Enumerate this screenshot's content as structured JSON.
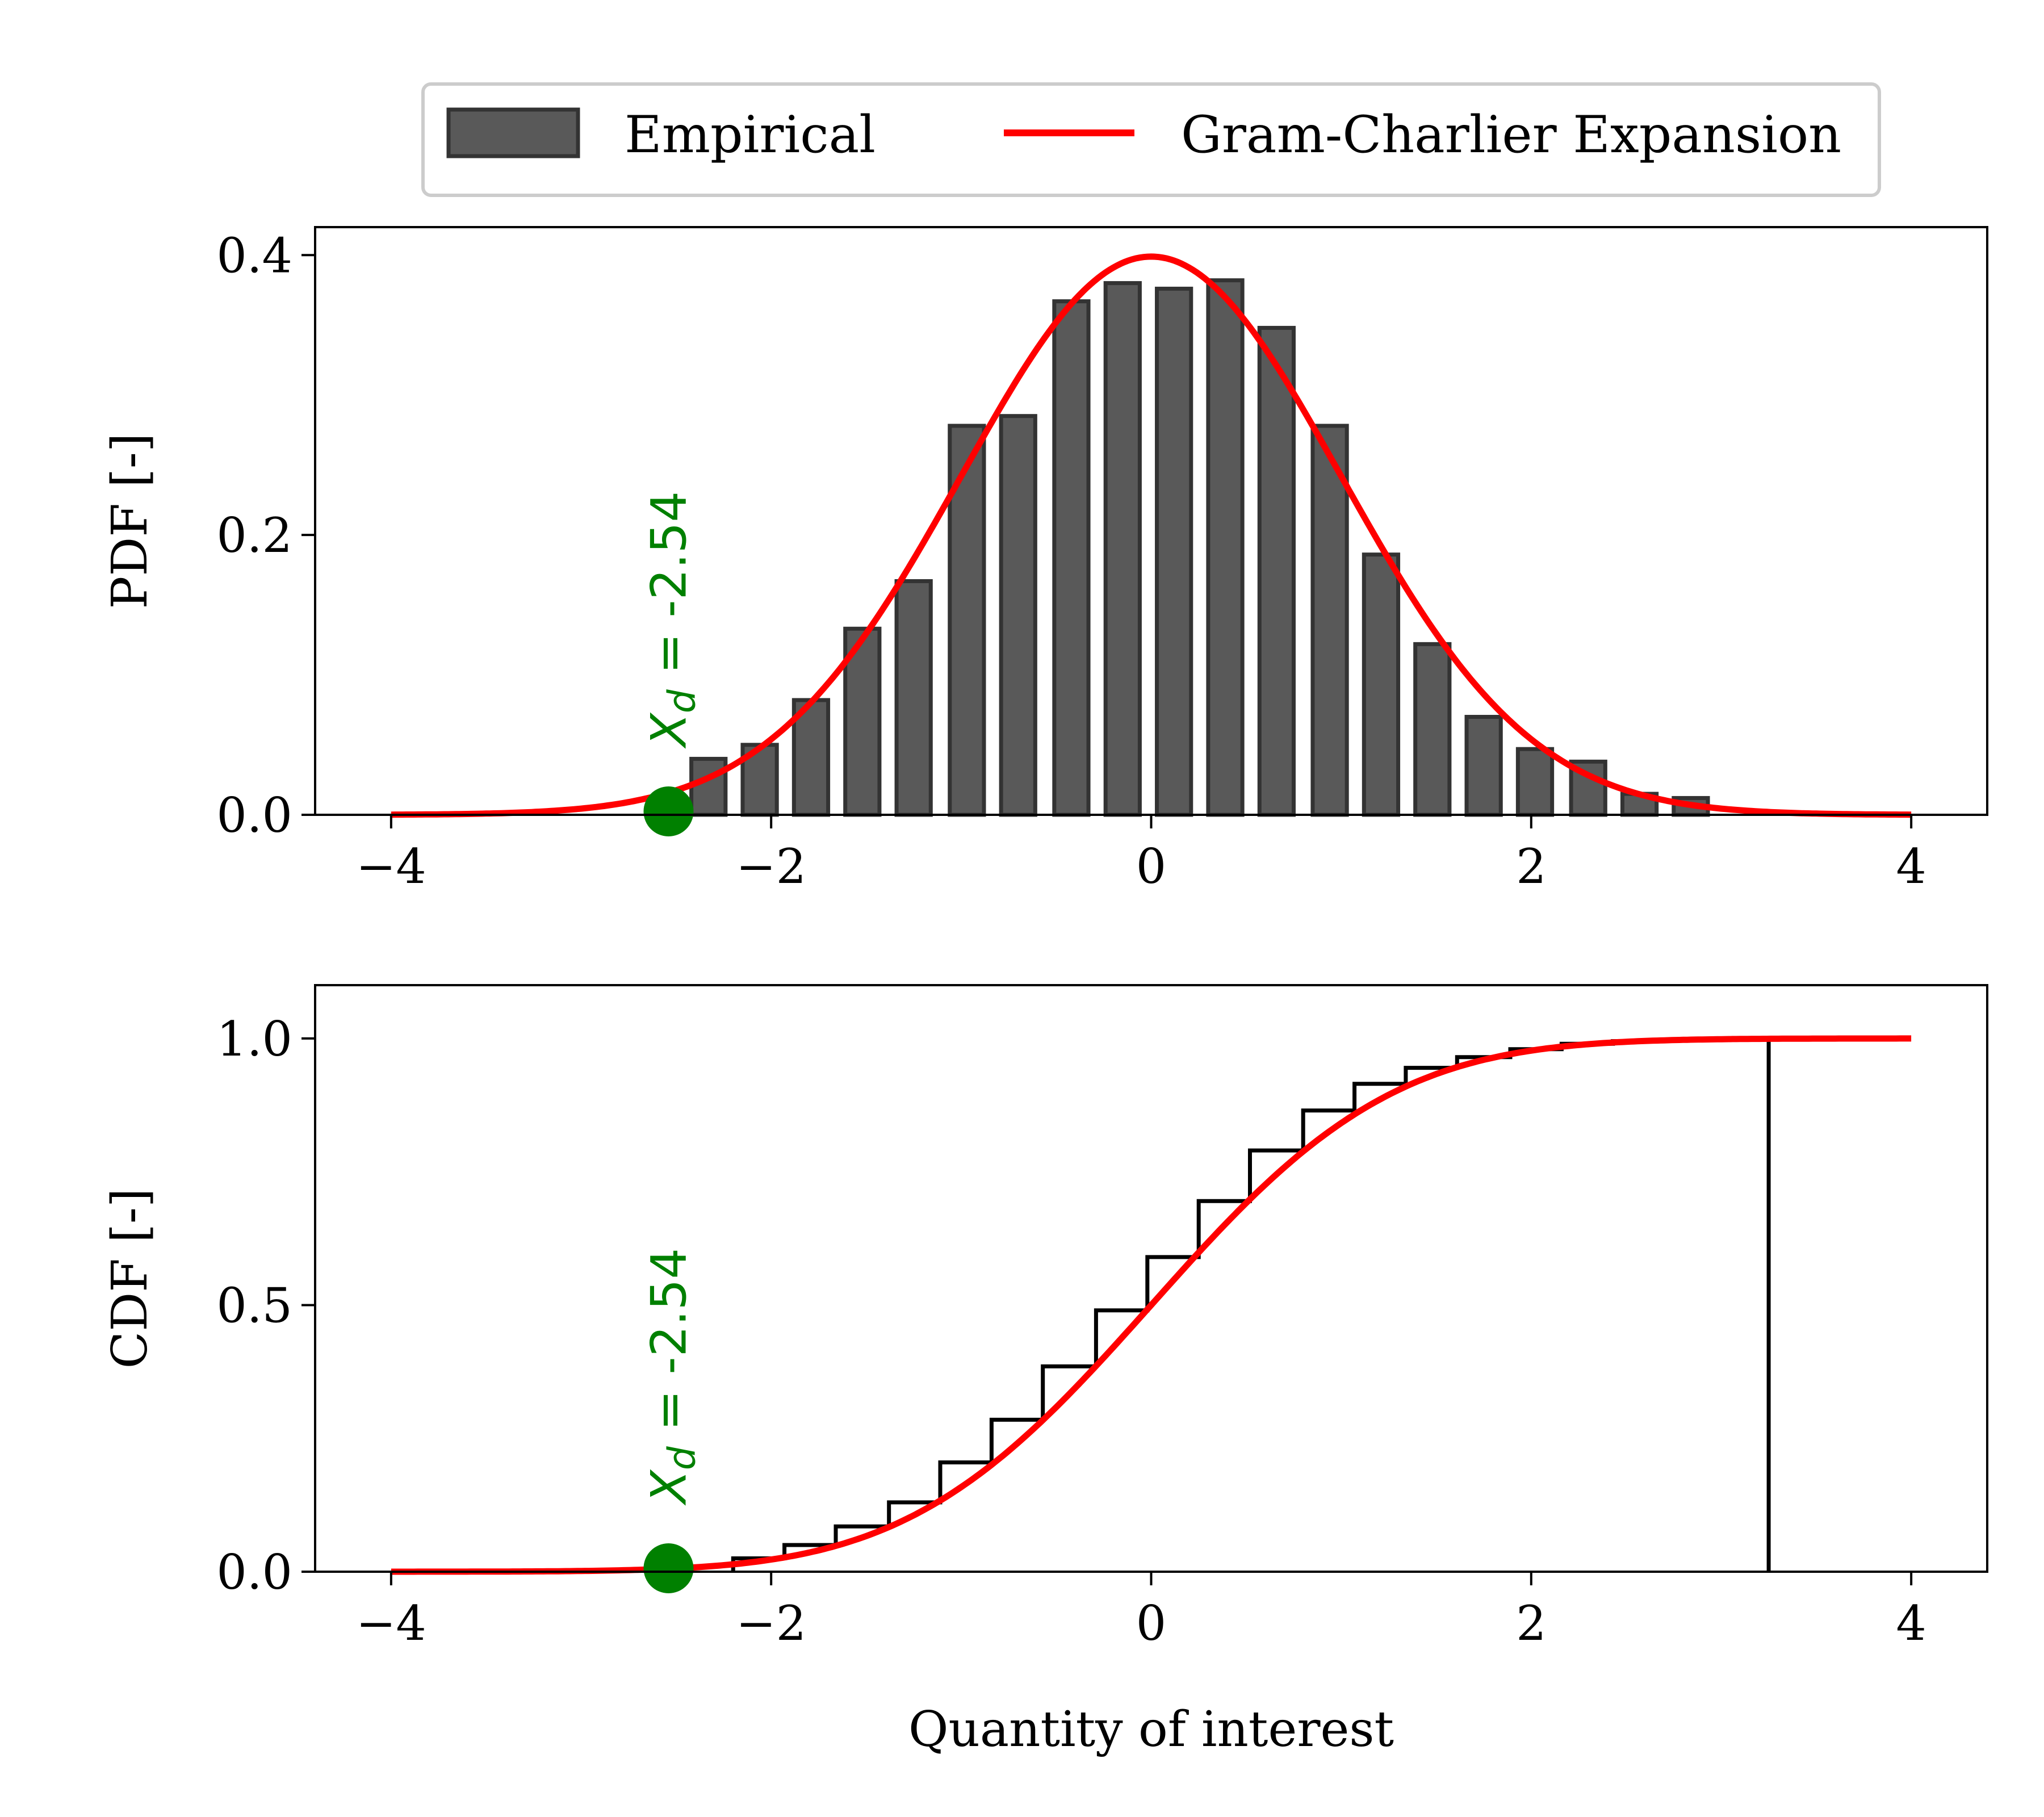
{
  "legend": {
    "entries": [
      {
        "label": "Empirical",
        "color": "#595959",
        "edge": "#333333"
      },
      {
        "label": "Gram-Charlier Expansion",
        "color": "#ff0000"
      }
    ]
  },
  "chart_data": [
    {
      "type": "bar",
      "panel": "pdf",
      "ylabel": "PDF [-]",
      "xlabel": "",
      "xlim": [
        -4.4,
        4.4
      ],
      "ylim": [
        0,
        0.42
      ],
      "xticks": [
        -4,
        -2,
        0,
        2,
        4
      ],
      "xtick_labels": [
        "−4",
        "−2",
        "0",
        "2",
        "4"
      ],
      "yticks": [
        0.0,
        0.2,
        0.4
      ],
      "ytick_labels": [
        "0.0",
        "0.2",
        "0.4"
      ],
      "grid": false,
      "bars": {
        "name": "Empirical",
        "x": [
          -2.33,
          -2.06,
          -1.79,
          -1.52,
          -1.25,
          -0.97,
          -0.7,
          -0.42,
          -0.15,
          0.12,
          0.39,
          0.66,
          0.94,
          1.21,
          1.48,
          1.75,
          2.02,
          2.3,
          2.57,
          2.84
        ],
        "values": [
          0.04,
          0.05,
          0.082,
          0.133,
          0.167,
          0.278,
          0.285,
          0.367,
          0.38,
          0.376,
          0.382,
          0.348,
          0.278,
          0.186,
          0.122,
          0.07,
          0.047,
          0.038,
          0.015,
          0.012
        ],
        "width": 0.18
      },
      "curve": {
        "name": "Gram-Charlier Expansion",
        "kind": "standard-normal-pdf",
        "x_range": [
          -4,
          4
        ]
      },
      "marker": {
        "x": -2.54,
        "y": 0.0,
        "label_var": "X",
        "label_sub": "d",
        "label_text": " = -2.54"
      }
    },
    {
      "type": "line",
      "panel": "cdf",
      "ylabel": "CDF [-]",
      "xlabel": "Quantity of interest",
      "xlim": [
        -4.4,
        4.4
      ],
      "ylim": [
        0,
        1.1
      ],
      "xticks": [
        -4,
        -2,
        0,
        2,
        4
      ],
      "xtick_labels": [
        "−4",
        "−2",
        "0",
        "2",
        "4"
      ],
      "yticks": [
        0.0,
        0.5,
        1.0
      ],
      "ytick_labels": [
        "0.0",
        "0.5",
        "1.0"
      ],
      "grid": false,
      "empirical_step": {
        "edges": [
          -2.2,
          -1.93,
          -1.66,
          -1.38,
          -1.11,
          -0.84,
          -0.57,
          -0.29,
          -0.02,
          0.25,
          0.52,
          0.8,
          1.07,
          1.34,
          1.61,
          1.89,
          2.16,
          2.43,
          2.7,
          2.98,
          3.25
        ],
        "values": [
          0.025,
          0.05,
          0.085,
          0.13,
          0.205,
          0.285,
          0.385,
          0.49,
          0.59,
          0.695,
          0.79,
          0.865,
          0.915,
          0.945,
          0.965,
          0.98,
          0.99,
          0.995,
          0.998,
          1.0
        ]
      },
      "curve": {
        "name": "Gram-Charlier Expansion",
        "kind": "standard-normal-cdf",
        "x_range": [
          -4,
          4
        ]
      },
      "marker": {
        "x": -2.54,
        "y": 0.0,
        "label_var": "X",
        "label_sub": "d",
        "label_text": " = -2.54"
      }
    }
  ],
  "colors": {
    "curve": "#ff0000",
    "bar_fill": "#595959",
    "bar_edge": "#333333",
    "marker": "#008000",
    "step": "#000000"
  }
}
